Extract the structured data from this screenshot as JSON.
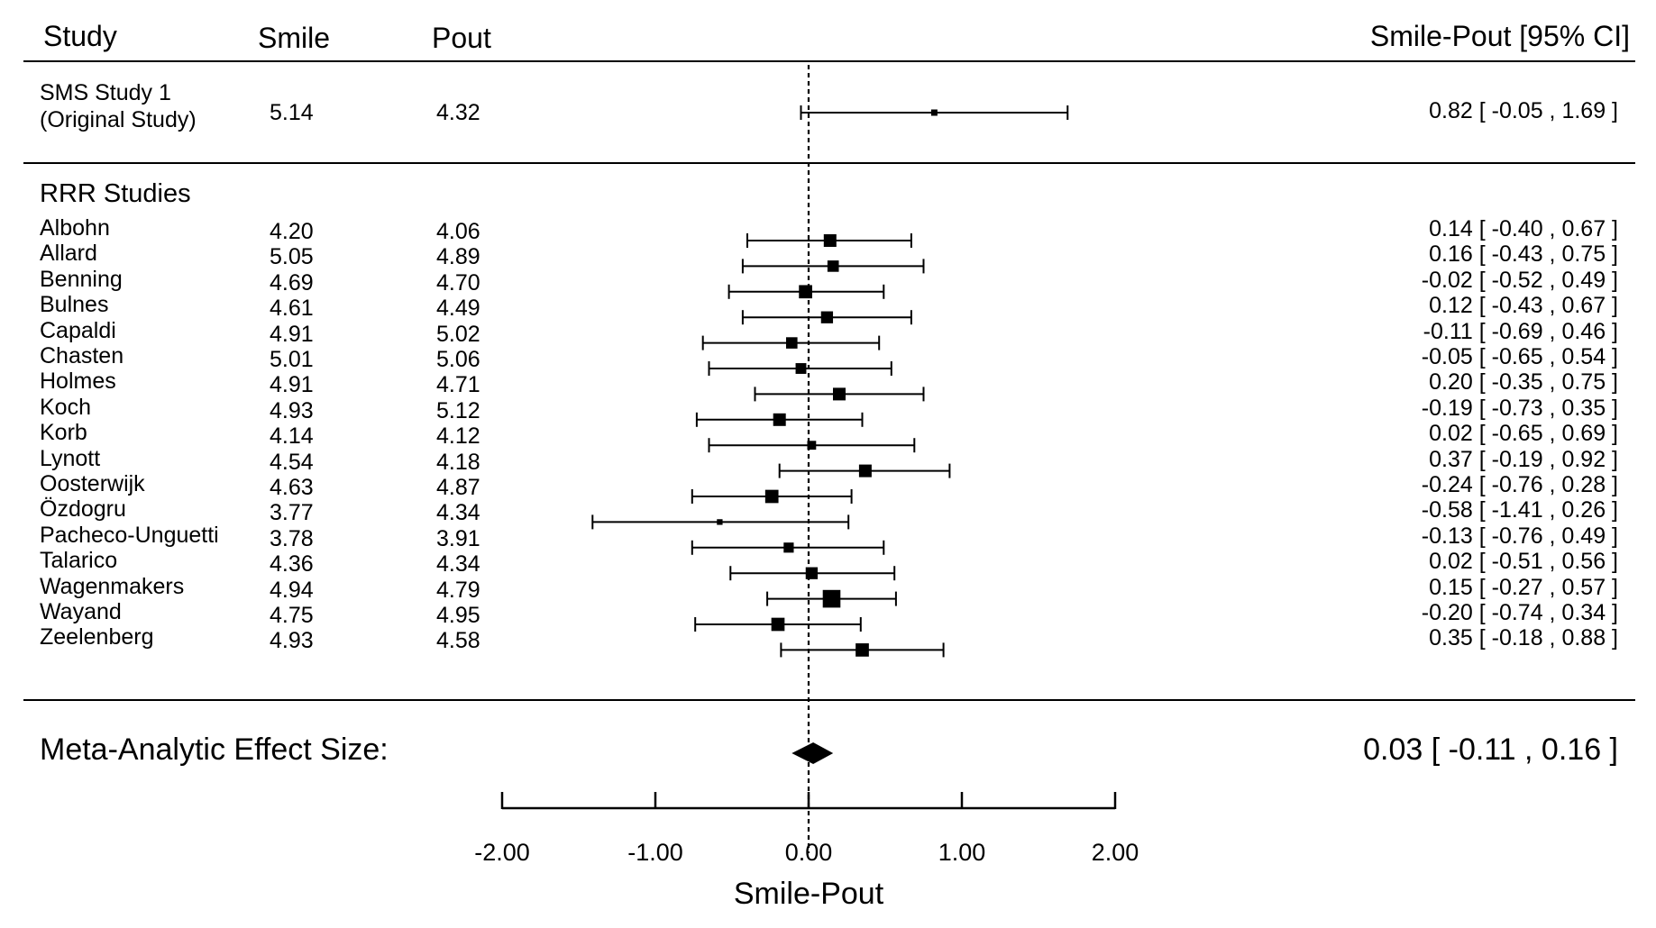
{
  "header": {
    "study": "Study",
    "smile": "Smile",
    "pout": "Pout",
    "ci": "Smile-Pout [95% CI]"
  },
  "original": {
    "name_line1": "SMS Study 1",
    "name_line2": "(Original Study)",
    "smile": "5.14",
    "pout": "4.32",
    "ci_text": "0.82 [ -0.05 , 1.69 ]"
  },
  "rrr_label": "RRR Studies",
  "studies": [
    {
      "name": "Albohn",
      "smile": "4.20",
      "pout": "4.06",
      "ci_text": "0.14 [ -0.40 , 0.67 ]"
    },
    {
      "name": "Allard",
      "smile": "5.05",
      "pout": "4.89",
      "ci_text": "0.16 [ -0.43 , 0.75 ]"
    },
    {
      "name": "Benning",
      "smile": "4.69",
      "pout": "4.70",
      "ci_text": "-0.02 [ -0.52 , 0.49 ]"
    },
    {
      "name": "Bulnes",
      "smile": "4.61",
      "pout": "4.49",
      "ci_text": "0.12 [ -0.43 , 0.67 ]"
    },
    {
      "name": "Capaldi",
      "smile": "4.91",
      "pout": "5.02",
      "ci_text": "-0.11 [ -0.69 , 0.46 ]"
    },
    {
      "name": "Chasten",
      "smile": "5.01",
      "pout": "5.06",
      "ci_text": "-0.05 [ -0.65 , 0.54 ]"
    },
    {
      "name": "Holmes",
      "smile": "4.91",
      "pout": "4.71",
      "ci_text": "0.20 [ -0.35 , 0.75 ]"
    },
    {
      "name": "Koch",
      "smile": "4.93",
      "pout": "5.12",
      "ci_text": "-0.19 [ -0.73 , 0.35 ]"
    },
    {
      "name": "Korb",
      "smile": "4.14",
      "pout": "4.12",
      "ci_text": "0.02 [ -0.65 , 0.69 ]"
    },
    {
      "name": "Lynott",
      "smile": "4.54",
      "pout": "4.18",
      "ci_text": "0.37 [ -0.19 , 0.92 ]"
    },
    {
      "name": "Oosterwijk",
      "smile": "4.63",
      "pout": "4.87",
      "ci_text": "-0.24 [ -0.76 , 0.28 ]"
    },
    {
      "name": "Özdogru",
      "smile": "3.77",
      "pout": "4.34",
      "ci_text": "-0.58 [ -1.41 , 0.26 ]"
    },
    {
      "name": "Pacheco-Unguetti",
      "smile": "3.78",
      "pout": "3.91",
      "ci_text": "-0.13 [ -0.76 , 0.49 ]"
    },
    {
      "name": "Talarico",
      "smile": "4.36",
      "pout": "4.34",
      "ci_text": "0.02 [ -0.51 , 0.56 ]"
    },
    {
      "name": "Wagenmakers",
      "smile": "4.94",
      "pout": "4.79",
      "ci_text": "0.15 [ -0.27 , 0.57 ]"
    },
    {
      "name": "Wayand",
      "smile": "4.75",
      "pout": "4.95",
      "ci_text": "-0.20 [ -0.74 , 0.34 ]"
    },
    {
      "name": "Zeelenberg",
      "smile": "4.93",
      "pout": "4.58",
      "ci_text": "0.35 [ -0.18 , 0.88 ]"
    }
  ],
  "meta": {
    "label": "Meta-Analytic Effect Size:",
    "ci_text": "0.03 [ -0.11 , 0.16 ]"
  },
  "chart_data": {
    "type": "forest",
    "xlabel": "Smile-Pout",
    "xlim": [
      -2,
      2
    ],
    "xticks": [
      "-2.00",
      "-1.00",
      "0.00",
      "1.00",
      "2.00"
    ],
    "tick_values": [
      -2,
      -1,
      0,
      1,
      2
    ],
    "reference_line": 0,
    "original": {
      "est": 0.82,
      "lo": -0.05,
      "hi": 1.69
    },
    "studies": [
      {
        "est": 0.14,
        "lo": -0.4,
        "hi": 0.67,
        "weight": 1.0
      },
      {
        "est": 0.16,
        "lo": -0.43,
        "hi": 0.75,
        "weight": 0.9
      },
      {
        "est": -0.02,
        "lo": -0.52,
        "hi": 0.49,
        "weight": 1.05
      },
      {
        "est": 0.12,
        "lo": -0.43,
        "hi": 0.67,
        "weight": 0.95
      },
      {
        "est": -0.11,
        "lo": -0.69,
        "hi": 0.46,
        "weight": 0.9
      },
      {
        "est": -0.05,
        "lo": -0.65,
        "hi": 0.54,
        "weight": 0.85
      },
      {
        "est": 0.2,
        "lo": -0.35,
        "hi": 0.75,
        "weight": 1.0
      },
      {
        "est": -0.19,
        "lo": -0.73,
        "hi": 0.35,
        "weight": 1.0
      },
      {
        "est": 0.02,
        "lo": -0.65,
        "hi": 0.69,
        "weight": 0.7
      },
      {
        "est": 0.37,
        "lo": -0.19,
        "hi": 0.92,
        "weight": 1.0
      },
      {
        "est": -0.24,
        "lo": -0.76,
        "hi": 0.28,
        "weight": 1.05
      },
      {
        "est": -0.58,
        "lo": -1.41,
        "hi": 0.26,
        "weight": 0.45
      },
      {
        "est": -0.13,
        "lo": -0.76,
        "hi": 0.49,
        "weight": 0.8
      },
      {
        "est": 0.02,
        "lo": -0.51,
        "hi": 0.56,
        "weight": 0.95
      },
      {
        "est": 0.15,
        "lo": -0.27,
        "hi": 0.57,
        "weight": 1.4
      },
      {
        "est": -0.2,
        "lo": -0.74,
        "hi": 0.34,
        "weight": 1.05
      },
      {
        "est": 0.35,
        "lo": -0.18,
        "hi": 0.88,
        "weight": 1.05
      }
    ],
    "meta": {
      "est": 0.03,
      "lo": -0.11,
      "hi": 0.16
    }
  }
}
